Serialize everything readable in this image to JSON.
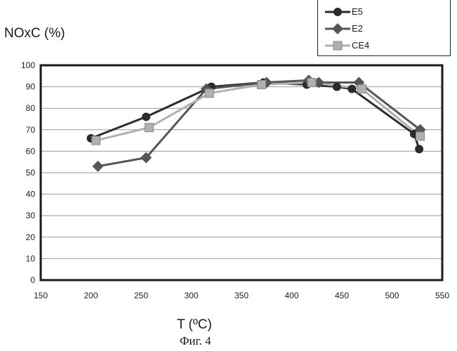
{
  "chart_data": {
    "type": "line",
    "title": "",
    "ylabel": "NOxC (%)",
    "xlabel": "T (ºC)",
    "caption": "Фиг. 4",
    "xlim": [
      150,
      550
    ],
    "ylim": [
      0,
      100
    ],
    "x_ticks": [
      150,
      200,
      250,
      300,
      350,
      400,
      450,
      500,
      550
    ],
    "y_ticks": [
      0,
      10,
      20,
      30,
      40,
      50,
      60,
      70,
      80,
      90,
      100
    ],
    "grid": "horizontal",
    "legend_position": "top-right",
    "series": [
      {
        "name": "E5",
        "marker": "circle",
        "color": "#2b2b2b",
        "points": [
          [
            200,
            66
          ],
          [
            255,
            76
          ],
          [
            320,
            90
          ],
          [
            372,
            92
          ],
          [
            415,
            91
          ],
          [
            445,
            90
          ],
          [
            460,
            89
          ],
          [
            522,
            68
          ],
          [
            527,
            61
          ]
        ]
      },
      {
        "name": "E2",
        "marker": "diamond",
        "color": "#555555",
        "points": [
          [
            207,
            53
          ],
          [
            255,
            57
          ],
          [
            315,
            89
          ],
          [
            375,
            92
          ],
          [
            417,
            93
          ],
          [
            427,
            92
          ],
          [
            467,
            92
          ],
          [
            528,
            70
          ]
        ]
      },
      {
        "name": "CE4",
        "marker": "square",
        "color": "#b0b0b0",
        "points": [
          [
            205,
            65
          ],
          [
            258,
            71
          ],
          [
            318,
            87
          ],
          [
            370,
            91
          ],
          [
            420,
            92
          ],
          [
            470,
            89
          ],
          [
            528,
            67
          ]
        ]
      }
    ]
  }
}
